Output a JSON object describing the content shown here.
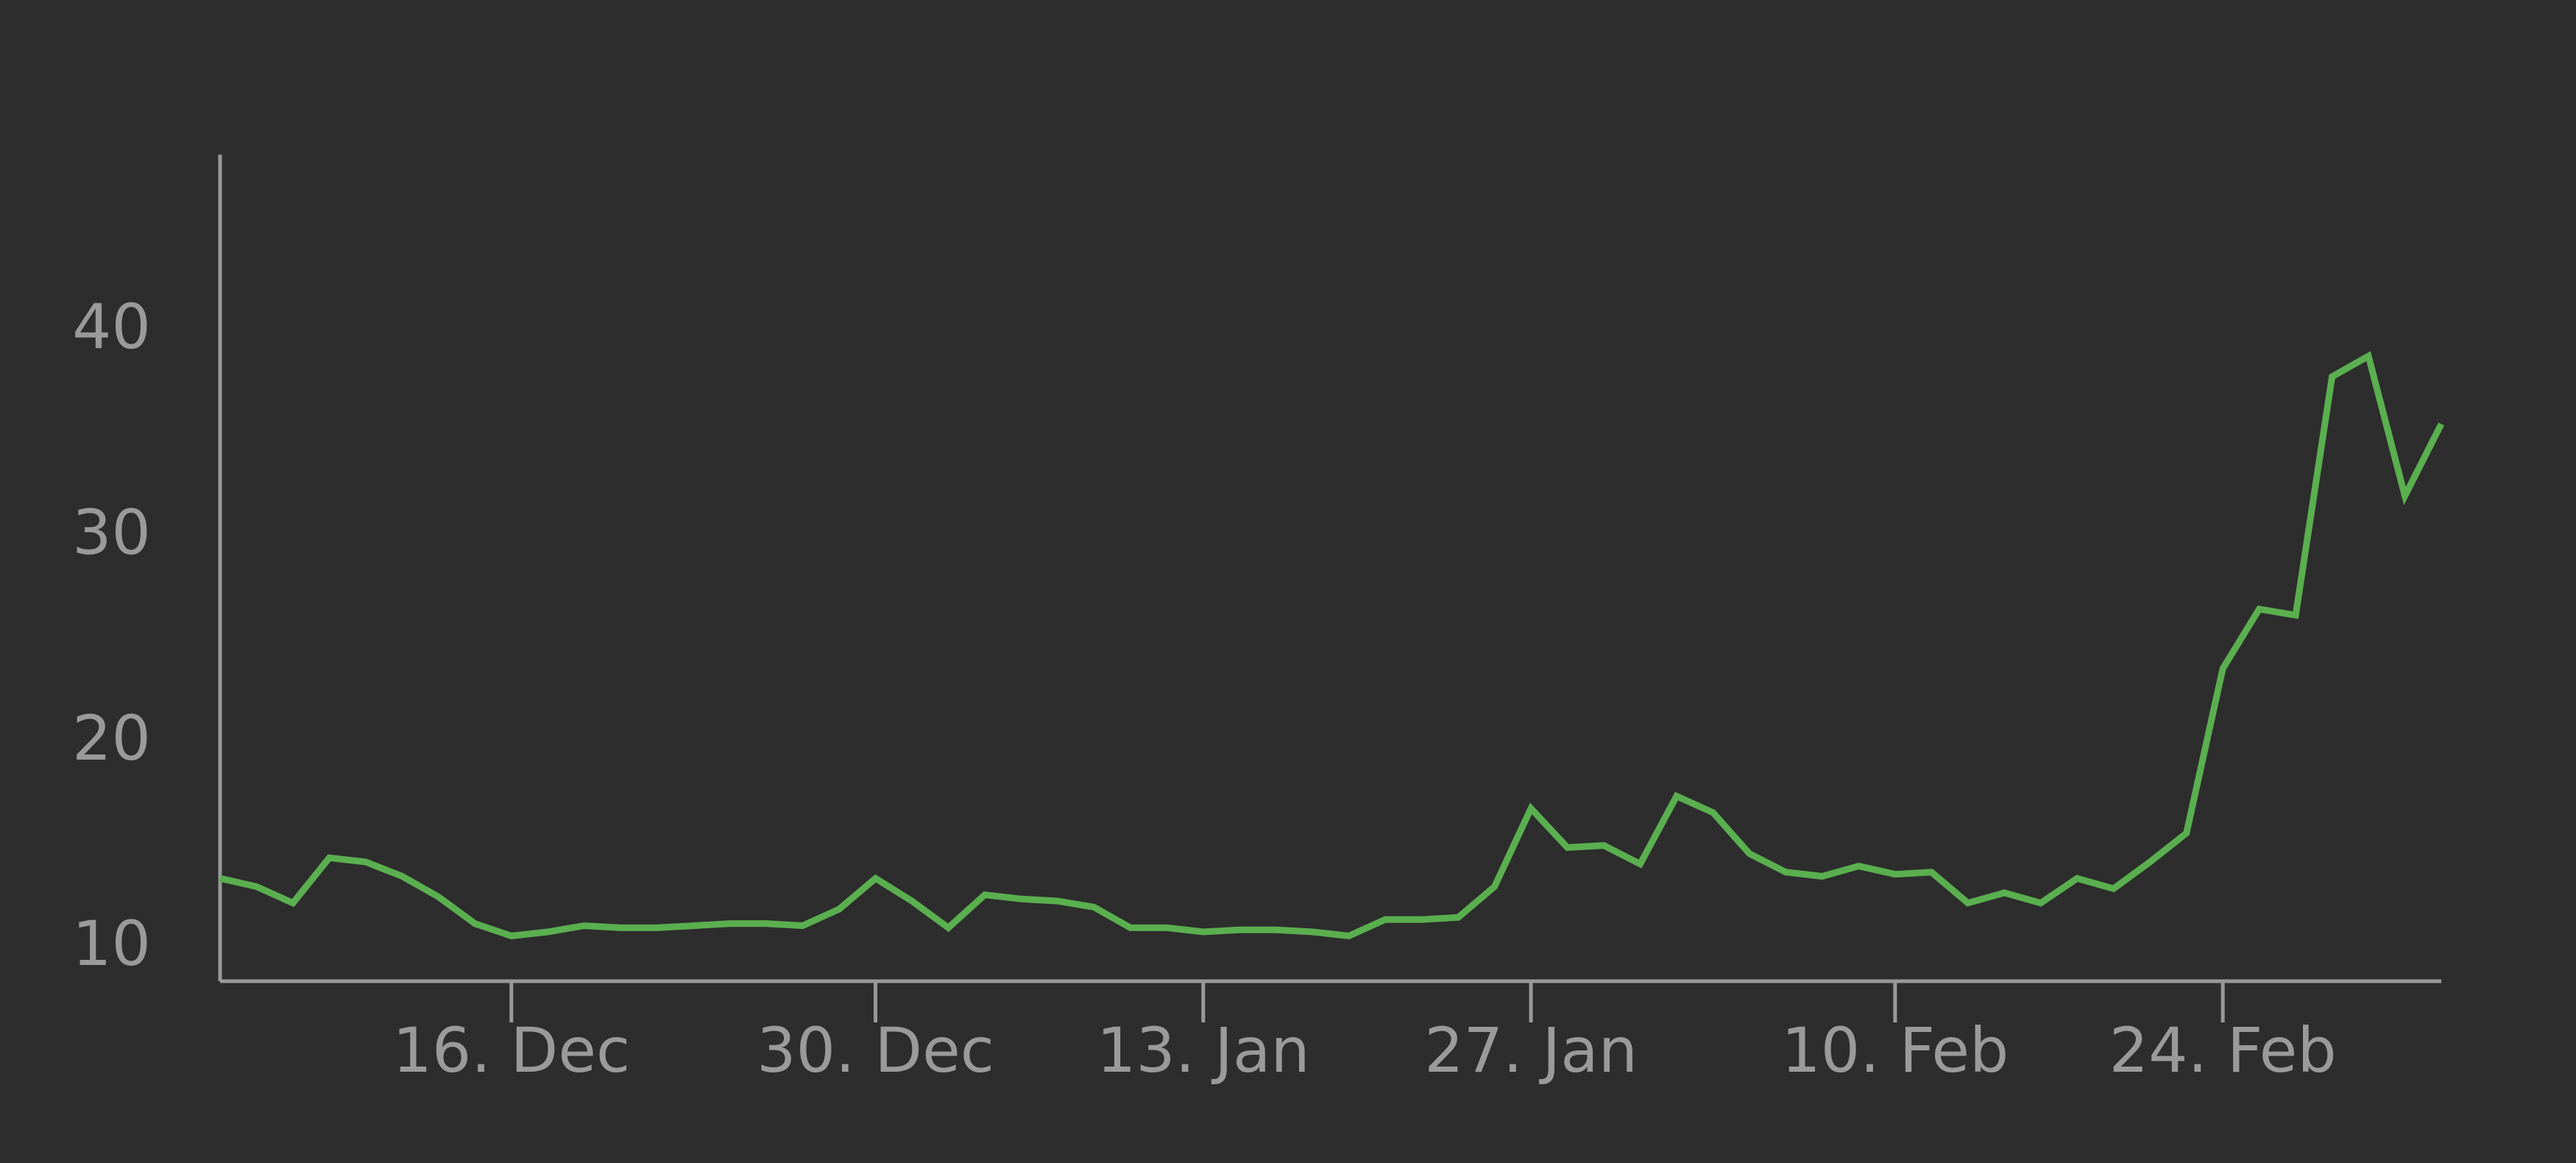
{
  "chart_data": {
    "type": "line",
    "categories": [
      null,
      null,
      null,
      null,
      null,
      null,
      null,
      null,
      "16. Dec",
      null,
      null,
      null,
      null,
      null,
      null,
      null,
      null,
      null,
      "30. Dec",
      null,
      null,
      null,
      null,
      null,
      null,
      null,
      null,
      "13. Jan",
      null,
      null,
      null,
      null,
      null,
      null,
      null,
      null,
      "27. Jan",
      null,
      null,
      null,
      null,
      null,
      null,
      null,
      null,
      null,
      "10. Feb",
      null,
      null,
      null,
      null,
      null,
      null,
      null,
      null,
      "24. Feb",
      null,
      null,
      null,
      null,
      null,
      null
    ],
    "values": [
      13.4,
      13.0,
      12.2,
      14.4,
      14.2,
      13.5,
      12.5,
      11.2,
      10.6,
      10.8,
      11.1,
      11.0,
      11.0,
      11.1,
      11.2,
      11.2,
      11.1,
      11.9,
      13.4,
      12.3,
      11.0,
      12.6,
      12.4,
      12.3,
      12.0,
      11.0,
      11.0,
      10.8,
      10.9,
      10.9,
      10.8,
      10.6,
      11.4,
      11.4,
      11.5,
      13.0,
      16.8,
      14.9,
      15.0,
      14.1,
      17.4,
      16.6,
      14.6,
      13.7,
      13.5,
      14.0,
      13.6,
      13.7,
      12.2,
      12.7,
      12.2,
      13.4,
      12.9,
      14.2,
      15.6,
      23.6,
      26.5,
      26.2,
      37.8,
      38.8,
      32.0,
      35.5
    ],
    "color": "#5aaf4f",
    "ylim": [
      8.4,
      48.6
    ],
    "yticks": [
      10,
      20,
      30,
      40
    ]
  }
}
